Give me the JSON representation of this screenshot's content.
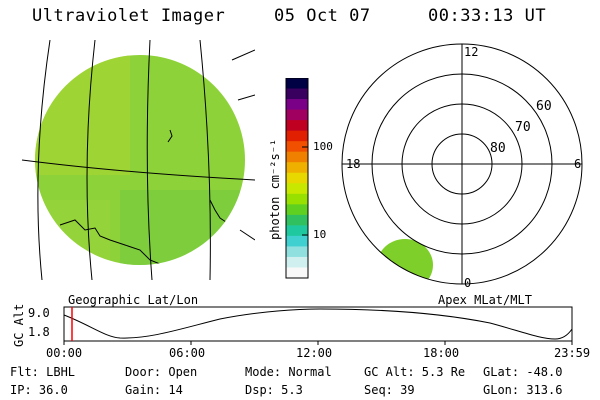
{
  "header": {
    "title": "Ultraviolet Imager",
    "date": "05 Oct 07",
    "time": "00:33:13 UT"
  },
  "colorbar": {
    "unit_label": "photon cm⁻²s⁻¹",
    "tick_100": "100",
    "tick_10": "10",
    "colors": [
      "#000044",
      "#3a0060",
      "#7a0088",
      "#a00060",
      "#c00020",
      "#e02000",
      "#f05000",
      "#f08000",
      "#f0b000",
      "#e8d800",
      "#c8e800",
      "#98e000",
      "#60d020",
      "#30c060",
      "#20c8a0",
      "#40d0d0",
      "#90e0e0",
      "#d0f0f0",
      "#f8f8f8"
    ]
  },
  "polar": {
    "hour_labels": {
      "top": "12",
      "left": "18",
      "right": "6",
      "bottom": "0"
    },
    "lat_labels": [
      "60",
      "70",
      "80"
    ]
  },
  "projection_labels": {
    "left": "Geographic Lat/Lon",
    "right": "Apex MLat/MLT"
  },
  "altitude_plot": {
    "ylabel": "GC Alt",
    "y_top": "9.0",
    "y_bottom": "1.8",
    "x_ticks": [
      "00:00",
      "06:00",
      "12:00",
      "18:00",
      "23:59"
    ]
  },
  "status": {
    "flt": "Flt: LBHL",
    "ip": "IP: 36.0",
    "door": "Door: Open",
    "gain": "Gain: 14",
    "mode": "Mode: Normal",
    "dsp": "Dsp:    5.3",
    "gc_alt": "GC Alt: 5.3 Re",
    "seq": "Seq: 39",
    "glat": "GLat: -48.0",
    "glon": "GLon: 313.6"
  },
  "colors": {
    "aurora_green": "#7ecf2a",
    "marker_red": "#ff0000"
  }
}
